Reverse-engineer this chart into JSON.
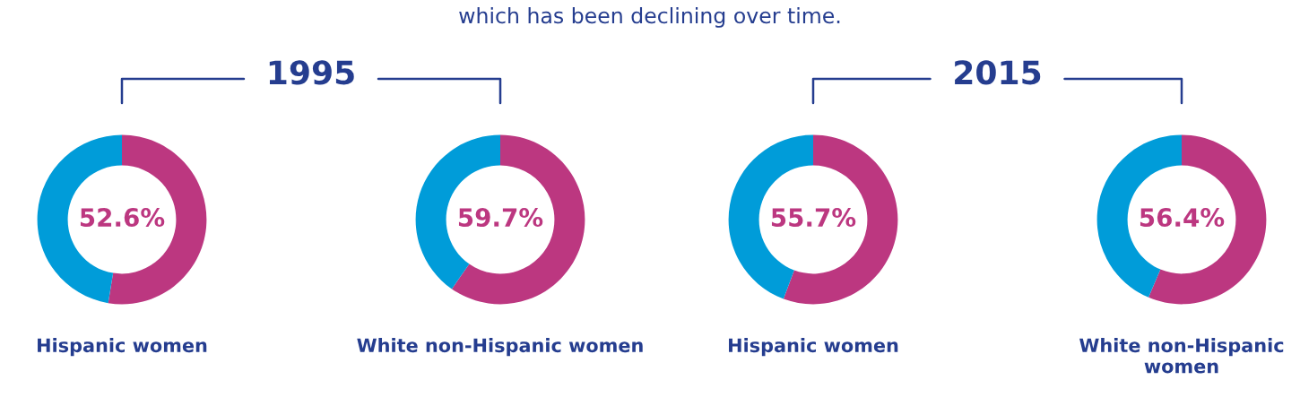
{
  "chart_data": [
    {
      "type": "donut",
      "categories": [
        null,
        null
      ],
      "values": [
        52.6,
        47.4
      ],
      "colors": [
        "#bc3780",
        "#009cd9"
      ],
      "value_labels": [
        "52.6%",
        null
      ],
      "xlabel": "Hispanic women",
      "annotations": [
        "which has been declining over time.",
        "1995"
      ]
    },
    {
      "type": "donut",
      "categories": [
        null,
        null
      ],
      "values": [
        59.7,
        40.3
      ],
      "colors": [
        "#bc3780",
        "#009cd9"
      ],
      "value_labels": [
        "59.7%",
        null
      ],
      "xlabel": "White non-Hispanic women"
    },
    {
      "type": "donut",
      "categories": [
        null,
        null
      ],
      "values": [
        55.7,
        44.3
      ],
      "colors": [
        "#bc3780",
        "#009cd9"
      ],
      "value_labels": [
        "55.7%",
        null
      ],
      "xlabel": "Hispanic women",
      "annotations": [
        "2015"
      ]
    },
    {
      "type": "donut",
      "categories": [
        null,
        null
      ],
      "values": [
        56.4,
        43.6
      ],
      "colors": [
        "#bc3780",
        "#009cd9"
      ],
      "value_labels": [
        "56.4%",
        null
      ],
      "xlabel": "White non-Hispanic women"
    }
  ]
}
